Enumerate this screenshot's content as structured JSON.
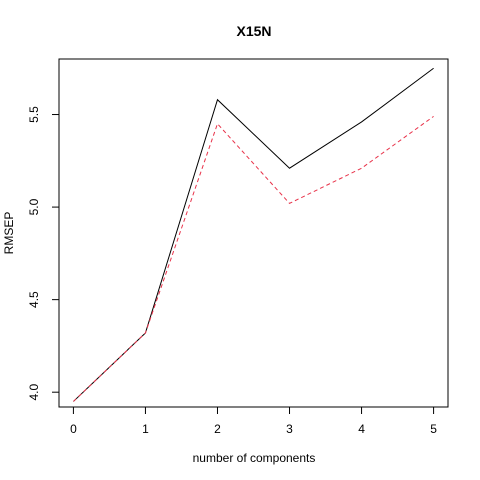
{
  "chart_data": {
    "type": "line",
    "title": "X15N",
    "xlabel": "number of components",
    "ylabel": "RMSEP",
    "x": [
      0,
      1,
      2,
      3,
      4,
      5
    ],
    "xlim": [
      -0.2,
      5.2
    ],
    "ylim": [
      3.92,
      5.8
    ],
    "x_ticks": [
      "0",
      "1",
      "2",
      "3",
      "4",
      "5"
    ],
    "y_ticks": [
      "4.0",
      "4.5",
      "5.0",
      "5.5"
    ],
    "series": [
      {
        "values": [
          3.95,
          4.32,
          5.58,
          5.21,
          5.46,
          5.75
        ],
        "color": "#000000",
        "dash": "solid"
      },
      {
        "values": [
          3.95,
          4.32,
          5.45,
          5.02,
          5.21,
          5.49
        ],
        "color": "#e8334a",
        "dash": "dashed"
      }
    ],
    "grid": false,
    "legend": "none"
  }
}
